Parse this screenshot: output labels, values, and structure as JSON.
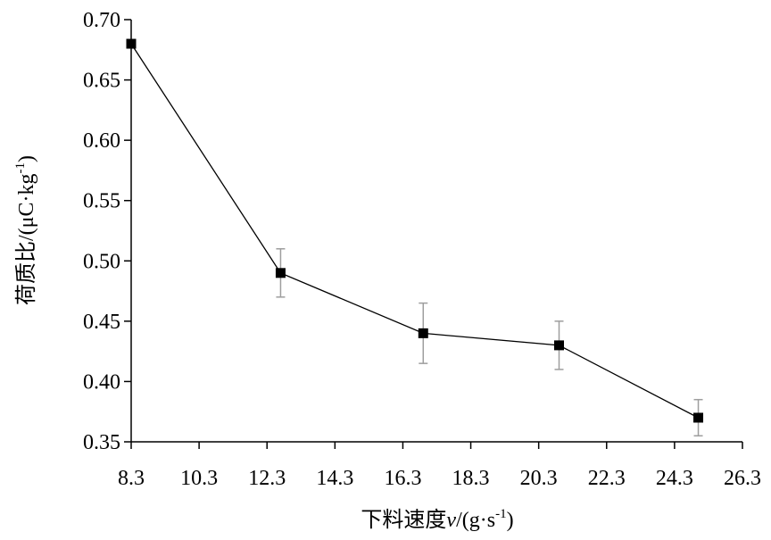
{
  "chart_data": {
    "type": "line",
    "title": "",
    "xlabel": "下料速度v/(g·s-1)",
    "ylabel": "荷质比/(μC·kg-1)",
    "xlim": [
      8.3,
      26.3
    ],
    "ylim": [
      0.35,
      0.7
    ],
    "x_ticks": [
      "8.3",
      "10.3",
      "12.3",
      "14.3",
      "16.3",
      "18.3",
      "20.3",
      "22.3",
      "24.3",
      "26.3"
    ],
    "y_ticks": [
      "0.35",
      "0.40",
      "0.45",
      "0.50",
      "0.55",
      "0.60",
      "0.65",
      "0.70"
    ],
    "grid": false,
    "legend": "none",
    "series": [
      {
        "color": "#000000",
        "marker": "square",
        "x": [
          8.3,
          12.7,
          16.9,
          20.9,
          25.0
        ],
        "y": [
          0.68,
          0.49,
          0.44,
          0.43,
          0.37
        ],
        "error": [
          [
            0.68,
            0.68
          ],
          [
            0.47,
            0.51
          ],
          [
            0.415,
            0.465
          ],
          [
            0.41,
            0.45
          ],
          [
            0.355,
            0.385
          ]
        ]
      }
    ],
    "error_bar_color": "#9e9e9e"
  }
}
